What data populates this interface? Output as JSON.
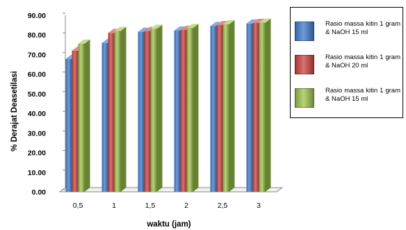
{
  "chart_data": {
    "type": "bar",
    "xlabel": "waktu (jam)",
    "ylabel": "% Derajat Deasetilasi",
    "ylim": [
      0,
      90
    ],
    "yticks": [
      "0.00",
      "10.00",
      "20.00",
      "30.00",
      "40.00",
      "50.00",
      "60.00",
      "70.00",
      "80.00",
      "90.00"
    ],
    "categories": [
      "0,5",
      "1",
      "1,5",
      "2",
      "2,5",
      "3"
    ],
    "series": [
      {
        "name": "Rasio massa kitin 1 gram & NaOH 15 ml",
        "color": "#4f7fc0",
        "values": [
          67.8,
          75.9,
          81.6,
          82.2,
          84.5,
          85.8
        ]
      },
      {
        "name": "Rasio massa kitin 1 gram & NaOH 20 ml",
        "color": "#c0504d",
        "values": [
          72.0,
          81.0,
          82.0,
          82.6,
          85.0,
          86.1
        ]
      },
      {
        "name": "Rasio massa kitin 1 gram & NaOH 15 ml",
        "color": "#9bbb59",
        "values": [
          75.5,
          82.0,
          83.1,
          83.5,
          85.4,
          86.2
        ]
      }
    ],
    "grid": false,
    "legend_position": "right",
    "style": "3d-columns"
  }
}
